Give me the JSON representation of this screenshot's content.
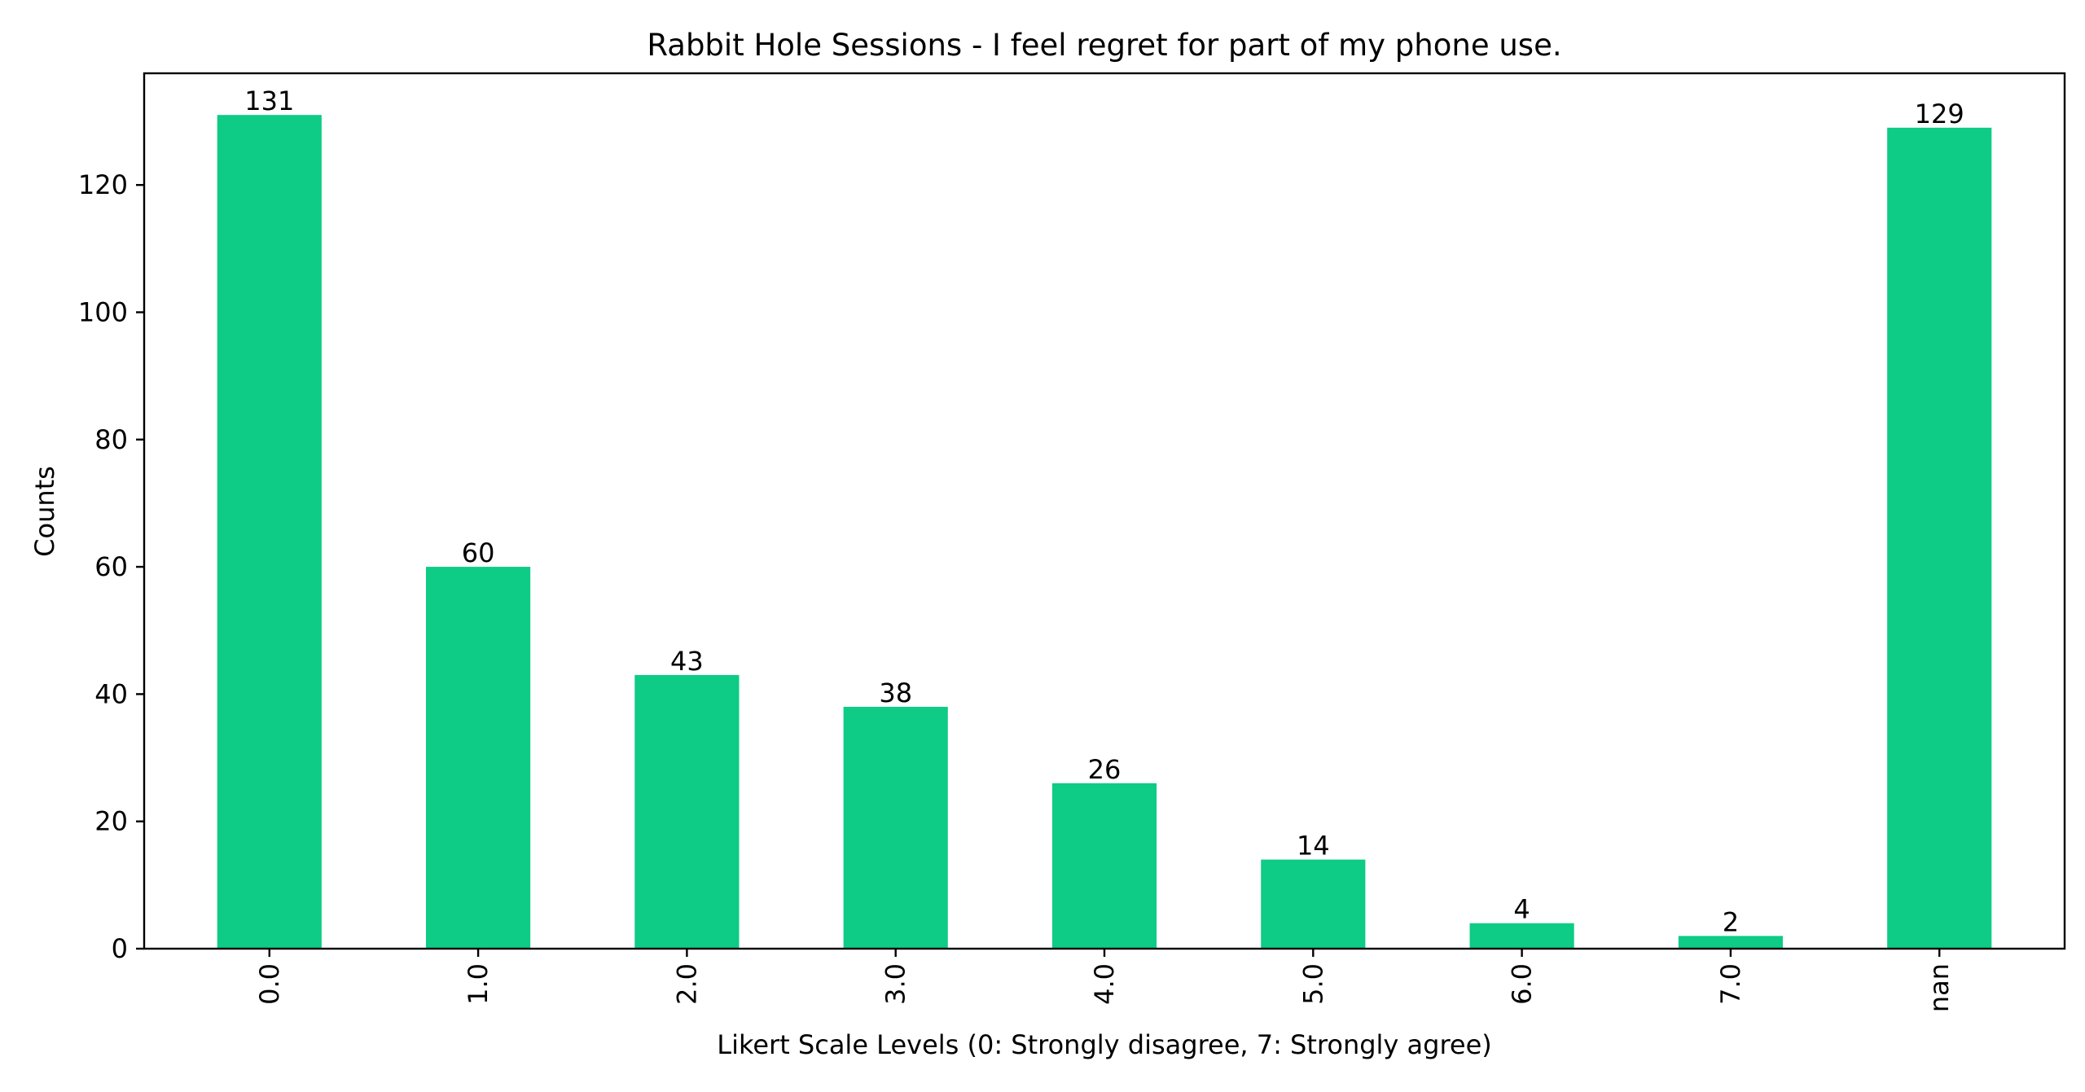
{
  "chart_data": {
    "type": "bar",
    "title": "Rabbit Hole Sessions - I feel regret for part of my phone use.",
    "xlabel": "Likert Scale Levels (0: Strongly disagree, 7: Strongly agree)",
    "ylabel": "Counts",
    "categories": [
      "0.0",
      "1.0",
      "2.0",
      "3.0",
      "4.0",
      "5.0",
      "6.0",
      "7.0",
      "nan"
    ],
    "values": [
      131,
      60,
      43,
      38,
      26,
      14,
      4,
      2,
      129
    ],
    "data_labels": [
      "131",
      "60",
      "43",
      "38",
      "26",
      "14",
      "4",
      "2",
      "129"
    ],
    "yticks": [
      0,
      20,
      40,
      60,
      80,
      100,
      120
    ],
    "ylim": [
      0,
      137.55
    ],
    "bar_color": "#0ecb86",
    "grid": false,
    "legend": "none",
    "x_tick_rotation": "vertical"
  }
}
